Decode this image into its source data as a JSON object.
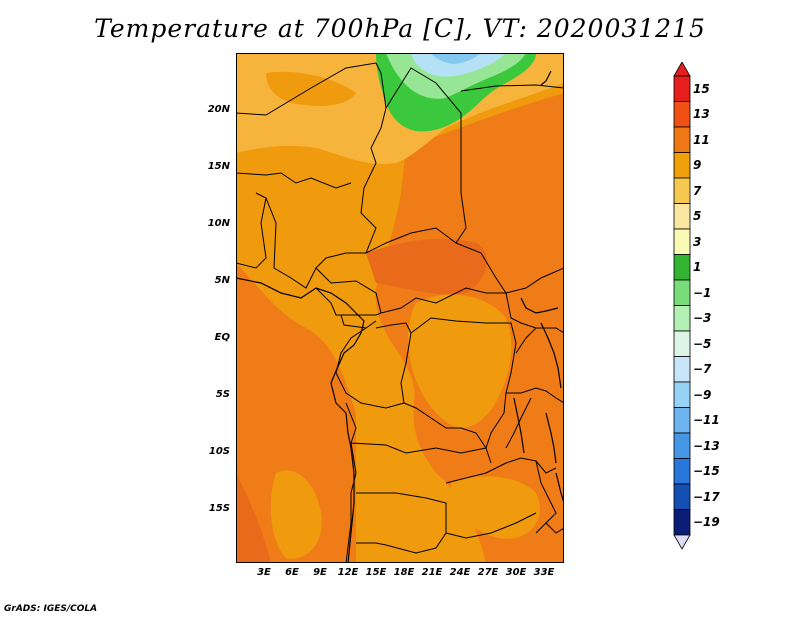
{
  "title": "Temperature at 700hPa [C], VT: 2020031215",
  "credit": "GrADS: IGES/COLA",
  "map": {
    "lat_labels": [
      "20N",
      "15N",
      "10N",
      "5N",
      "EQ",
      "5S",
      "10S",
      "15S"
    ],
    "lon_labels": [
      "3E",
      "6E",
      "9E",
      "12E",
      "15E",
      "18E",
      "21E",
      "24E",
      "27E",
      "30E",
      "33E"
    ],
    "fill_colors": {
      "dominant_orange": "#F09A0E",
      "deep_orange": "#F07C18",
      "red_orange": "#E86A1A",
      "light_orange": "#F6B43C",
      "green": "#3CC83C",
      "light_green": "#96E696",
      "pale_blue": "#B4E1F5",
      "light_blue": "#82C8F0"
    },
    "border_color": "#000000"
  },
  "colorbar": {
    "labels": [
      "15",
      "13",
      "11",
      "9",
      "7",
      "5",
      "3",
      "1",
      "−1",
      "−3",
      "−5",
      "−7",
      "−9",
      "−11",
      "−13",
      "−15",
      "−17",
      "−19"
    ],
    "colors": [
      "#E61E1E",
      "#F05014",
      "#F07814",
      "#F0A00A",
      "#F5C850",
      "#FAE6A0",
      "#FAFAB4",
      "#32B432",
      "#78DC78",
      "#B4F0B4",
      "#DCF5E6",
      "#C8E6FA",
      "#96D2F5",
      "#6EB4F0",
      "#4696E6",
      "#2878DC",
      "#1450B4",
      "#0A1E78"
    ],
    "top_arrow_color": "#E61E1E",
    "bottom_arrow_color": "#DCDCF5"
  }
}
